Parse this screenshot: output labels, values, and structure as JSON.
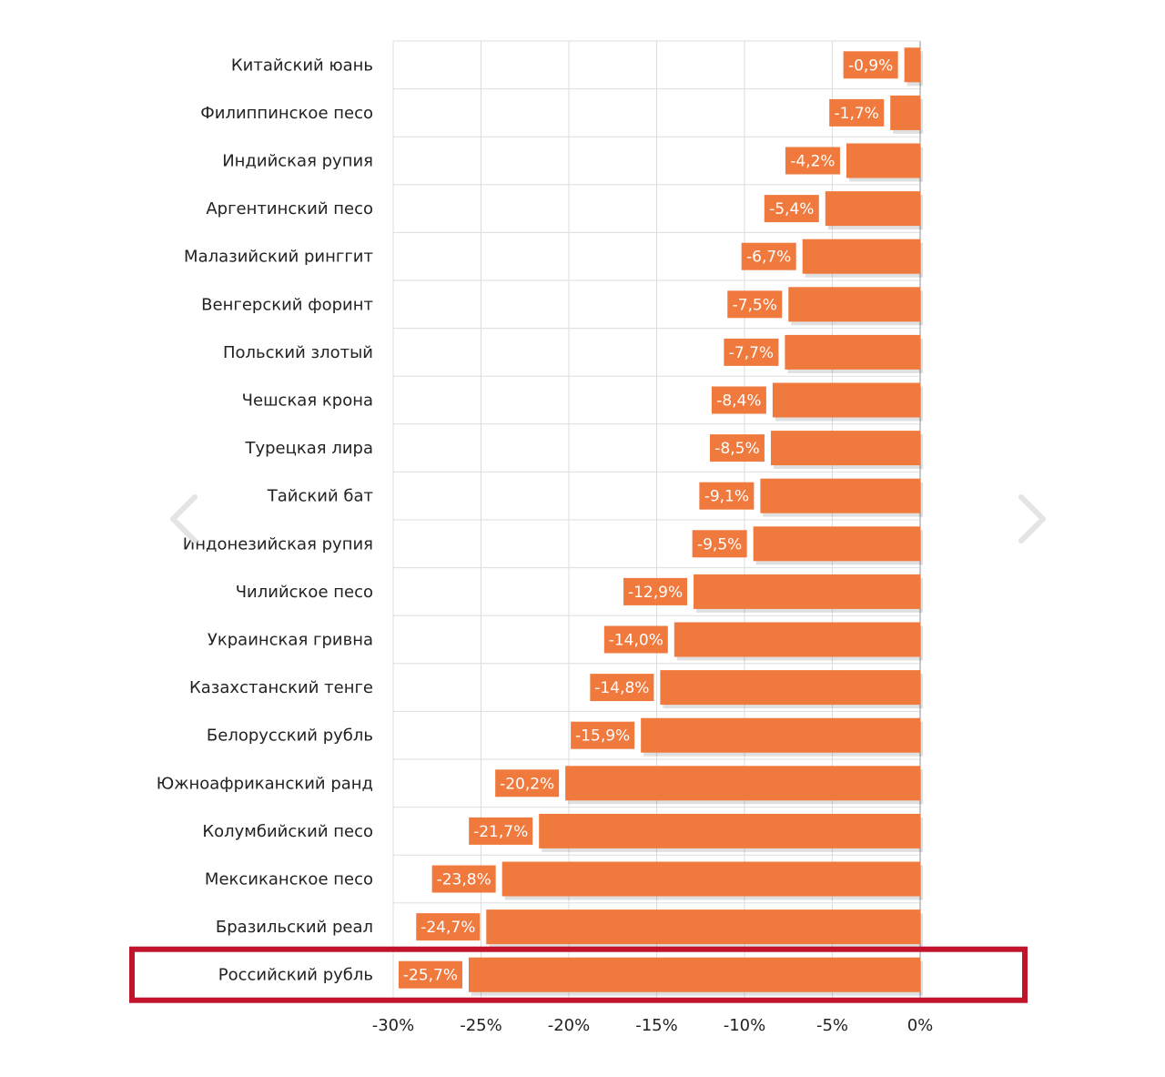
{
  "chart_data": {
    "type": "bar",
    "orientation": "horizontal",
    "categories": [
      "Китайский юань",
      "Филиппинское песо",
      "Индийская рупия",
      "Аргентинский песо",
      "Малазийский ринггит",
      "Венгерский форинт",
      "Польский злотый",
      "Чешская крона",
      "Турецкая лира",
      "Тайский бат",
      "Индонезийская рупия",
      "Чилийское песо",
      "Украинская гривна",
      "Казахстанский тенге",
      "Белорусский рубль",
      "Южноафриканский  ранд",
      "Колумбийский песо",
      "Мексиканское песо",
      "Бразильский реал",
      "Российский рубль"
    ],
    "values": [
      -0.9,
      -1.7,
      -4.2,
      -5.4,
      -6.7,
      -7.5,
      -7.7,
      -8.4,
      -8.5,
      -9.1,
      -9.5,
      -12.9,
      -14.0,
      -14.8,
      -15.9,
      -20.2,
      -21.7,
      -23.8,
      -24.7,
      -25.7
    ],
    "data_labels": [
      "-0,9%",
      "-1,7%",
      "-4,2%",
      "-5,4%",
      "-6,7%",
      "-7,5%",
      "-7,7%",
      "-8,4%",
      "-8,5%",
      "-9,1%",
      "-9,5%",
      "-12,9%",
      "-14,0%",
      "-14,8%",
      "-15,9%",
      "-20,2%",
      "-21,7%",
      "-23,8%",
      "-24,7%",
      "-25,7%"
    ],
    "x_ticks": [
      -30,
      -25,
      -20,
      -15,
      -10,
      -5,
      0
    ],
    "x_tick_labels": [
      "-30%",
      "-25%",
      "-20%",
      "-15%",
      "-10%",
      "-5%",
      "0%"
    ],
    "xlim": [
      -30,
      0
    ],
    "grid": true,
    "highlighted_category": "Российский рубль",
    "title": "",
    "xlabel": "",
    "ylabel": ""
  },
  "colors": {
    "bar": "#f07a3e",
    "label_box": "#f07a3e",
    "label_text": "#ffffff",
    "grid": "#dddddd",
    "axis": "#c8c8c8",
    "highlight_border": "#c0142a",
    "category_text": "#222222",
    "tick_text": "#222222",
    "nav_arrow": "#e4e4e4"
  },
  "icons": {
    "prev": "chevron-left-icon",
    "next": "chevron-right-icon"
  }
}
